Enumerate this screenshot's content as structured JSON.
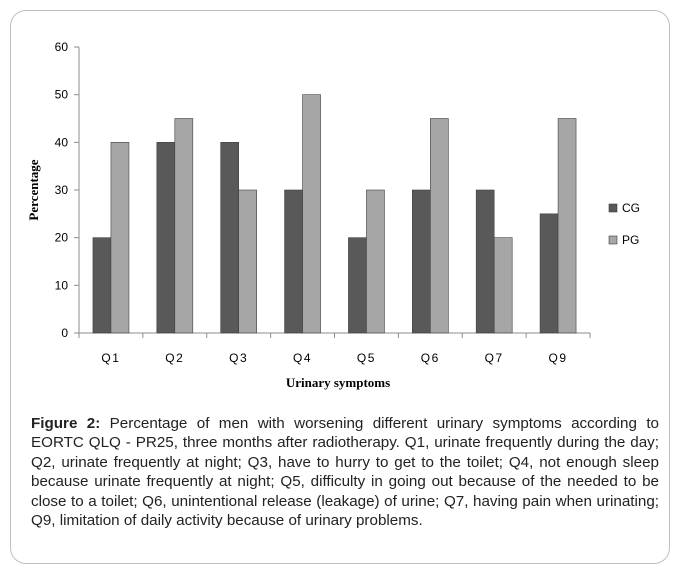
{
  "chart_data": {
    "type": "bar",
    "categories": [
      "Q1",
      "Q2",
      "Q3",
      "Q4",
      "Q5",
      "Q6",
      "Q7",
      "Q9"
    ],
    "series": [
      {
        "name": "CG",
        "values": [
          20,
          40,
          40,
          30,
          20,
          30,
          30,
          25
        ],
        "color": "#595959"
      },
      {
        "name": "PG",
        "values": [
          40,
          45,
          30,
          50,
          30,
          45,
          20,
          45
        ],
        "color": "#a6a6a6"
      }
    ],
    "xlabel": "Urinary symptoms",
    "ylabel": "Percentage",
    "ylim": [
      0,
      60
    ],
    "yticks": [
      0,
      10,
      20,
      30,
      40,
      50,
      60
    ],
    "grid": false,
    "legend": "right"
  },
  "caption": {
    "label": "Figure 2:",
    "text": " Percentage of men with worsening different urinary symptoms according to EORTC QLQ - PR25, three months after radiotherapy. Q1, urinate frequently during the day; Q2, urinate frequently at night; Q3, have to hurry to get to the toilet; Q4, not enough sleep because urinate frequently at night; Q5, difficulty in going out because of the needed to be close to a toilet; Q6, unintentional release (leakage) of urine; Q7, having pain when urinating; Q9, limitation of daily activity because of urinary problems."
  }
}
